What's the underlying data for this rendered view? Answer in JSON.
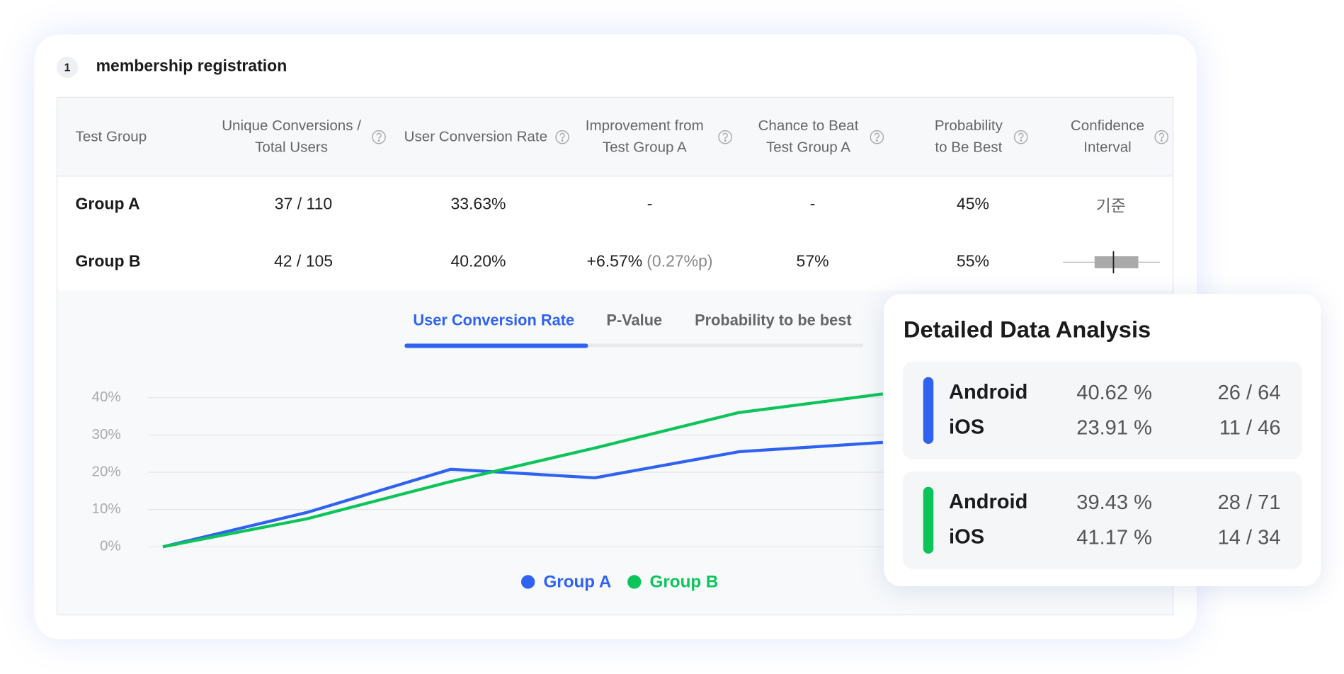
{
  "section": {
    "number": "1",
    "title": "membership registration"
  },
  "table": {
    "headers": [
      [
        "Test Group"
      ],
      [
        "Unique Conversions /",
        "Total Users"
      ],
      [
        "User Conversion Rate"
      ],
      [
        "Improvement from",
        "Test Group A"
      ],
      [
        "Chance to Beat",
        "Test Group A"
      ],
      [
        "Probability",
        "to Be Best"
      ],
      [
        "Confidence",
        "Interval"
      ]
    ],
    "rows": [
      {
        "group": "Group A",
        "conversions": "37 / 110",
        "rate": "33.63%",
        "improvement": "-",
        "chance": "-",
        "probability": "45%",
        "interval": "기준"
      },
      {
        "group": "Group B",
        "conversions": "42 / 105",
        "rate": "40.20%",
        "improvement": "+6.57%",
        "improvement_points": "(0.27%p)",
        "chance": "57%",
        "probability": "55%"
      }
    ]
  },
  "tabs": {
    "items": [
      "User Conversion Rate",
      "P-Value",
      "Probability to be best"
    ],
    "active": 0
  },
  "chart_data": {
    "type": "line",
    "categories": [
      null,
      null,
      null,
      null,
      null,
      null
    ],
    "series": [
      {
        "name": "Group A",
        "color": "#2f62f0",
        "values": [
          0,
          9.2,
          20.8,
          18.5,
          25.5,
          28
        ]
      },
      {
        "name": "Group B",
        "color": "#0cc45a",
        "values": [
          0,
          7.5,
          17.5,
          26.5,
          36,
          41
        ]
      }
    ],
    "ylim": [
      0,
      40
    ],
    "yticks": [
      {
        "value": 0,
        "label": "0%"
      },
      {
        "value": 10,
        "label": "10%"
      },
      {
        "value": 20,
        "label": "20%"
      },
      {
        "value": 30,
        "label": "30%"
      },
      {
        "value": 40,
        "label": "40%"
      }
    ],
    "grid": true,
    "legend": "bottom"
  },
  "panel": {
    "title": "Detailed Data Analysis",
    "groups": [
      {
        "color": "#2f62f0",
        "rows": [
          {
            "platform": "Android",
            "rate": "40.62 %",
            "count": "26 / 64"
          },
          {
            "platform": "iOS",
            "rate": "23.91 %",
            "count": "11 / 46"
          }
        ]
      },
      {
        "color": "#0cc45a",
        "rows": [
          {
            "platform": "Android",
            "rate": "39.43 %",
            "count": "28 / 71"
          },
          {
            "platform": "iOS",
            "rate": "41.17 %",
            "count": "14 / 34"
          }
        ]
      }
    ]
  }
}
